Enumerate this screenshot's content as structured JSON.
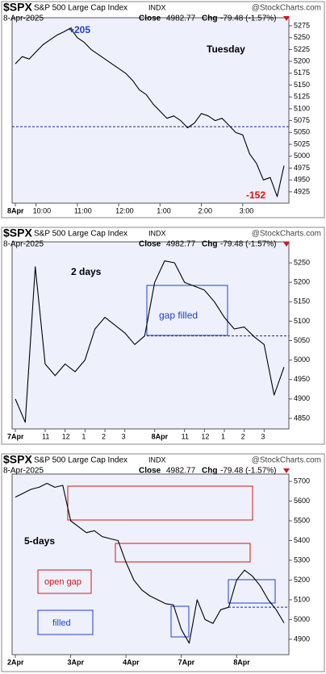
{
  "chart_data": [
    {
      "type": "line",
      "title": "$SPX",
      "subtitle": "S&P 500 Large Cap Index",
      "exchange": "INDX",
      "source": "@StockCharts.com",
      "date": "8-Apr-2025",
      "close_label": "Close",
      "close": 4982.77,
      "change_label": "Chg",
      "change": "-79.48 (-1.57%)",
      "categories": [
        "8Apr",
        null,
        null,
        "10:00",
        null,
        null,
        null,
        null,
        null,
        "11:00",
        null,
        null,
        null,
        null,
        null,
        "12:00",
        null,
        null,
        null,
        null,
        null,
        "1:00",
        null,
        null,
        null,
        null,
        null,
        "2:00",
        null,
        null,
        null,
        null,
        null,
        "3:00",
        null,
        null,
        null,
        null,
        null,
        null
      ],
      "values": [
        5195,
        5210,
        5205,
        5220,
        5235,
        5245,
        5255,
        5262,
        5270,
        5250,
        5240,
        5225,
        5215,
        5205,
        5195,
        5185,
        5175,
        5160,
        5140,
        5130,
        5110,
        5095,
        5080,
        5085,
        5075,
        5060,
        5070,
        5090,
        5085,
        5075,
        5080,
        5065,
        5050,
        5045,
        5005,
        4985,
        4950,
        4955,
        4915,
        4980
      ],
      "color": "#000000",
      "reference_line": 5062.25,
      "ylim": [
        4901,
        5292
      ],
      "yticks": [
        4925,
        4950,
        4975,
        5000,
        5025,
        5050,
        5075,
        5100,
        5125,
        5150,
        5175,
        5200,
        5225,
        5250,
        5275
      ],
      "annotations": [
        {
          "text": "+205",
          "color": "#1f3fd6"
        },
        {
          "text": "-152",
          "color": "#e01010"
        },
        {
          "text": "Tuesday",
          "color": "#000000"
        }
      ]
    },
    {
      "type": "line",
      "title": "$SPX",
      "subtitle": "S&P 500 Large Cap Index",
      "exchange": "INDX",
      "source": "@StockCharts.com",
      "date": "8-Apr-2025",
      "close_label": "Close",
      "close": 4982.77,
      "change_label": "Chg",
      "change": "-79.48 (-1.57%)",
      "categories": [
        "7Apr",
        null,
        null,
        "11",
        null,
        "12",
        null,
        "1",
        null,
        "2",
        null,
        "3",
        null,
        null,
        "8Apr",
        null,
        null,
        "11",
        null,
        "12",
        null,
        "1",
        null,
        "2",
        null,
        "3",
        null,
        null
      ],
      "values": [
        4900,
        4840,
        5240,
        4990,
        4960,
        4990,
        4970,
        5000,
        5080,
        5110,
        5090,
        5070,
        5040,
        5062,
        5200,
        5255,
        5250,
        5200,
        5190,
        5180,
        5150,
        5110,
        5080,
        5085,
        5060,
        5040,
        4910,
        4982
      ],
      "color": "#000000",
      "reference_line": 5062.25,
      "ylim": [
        4823,
        5304
      ],
      "yticks": [
        4850,
        4900,
        4950,
        5000,
        5050,
        5100,
        5150,
        5200,
        5250
      ],
      "annotations": [
        {
          "text": "2 days",
          "color": "#000000"
        },
        {
          "text": "gap filled",
          "color": "#1f3fd6"
        }
      ]
    },
    {
      "type": "line",
      "title": "$SPX",
      "subtitle": "S&P 500 Large Cap Index",
      "exchange": "INDX",
      "source": "@StockCharts.com",
      "date": "8-Apr-2025",
      "close_label": "Close",
      "close": 4982.77,
      "change_label": "Chg",
      "change": "-79.48 (-1.57%)",
      "categories": [
        "2Apr",
        null,
        null,
        null,
        null,
        null,
        null,
        "3Apr",
        null,
        null,
        null,
        null,
        null,
        null,
        "4Apr",
        null,
        null,
        null,
        null,
        null,
        null,
        "7Apr",
        null,
        null,
        null,
        null,
        null,
        null,
        "8Apr",
        null,
        null,
        null,
        null,
        null,
        null
      ],
      "values": [
        5620,
        5640,
        5660,
        5670,
        5690,
        5670,
        5680,
        5500,
        5470,
        5440,
        5450,
        5420,
        5410,
        5400,
        5290,
        5200,
        5150,
        5120,
        5100,
        5080,
        5074,
        4950,
        4880,
        5100,
        5000,
        4980,
        5050,
        5062,
        5200,
        5250,
        5220,
        5170,
        5100,
        5050,
        4982.77
      ],
      "color": "#000000",
      "reference_line": 5062.25,
      "ylim": [
        4822,
        5737
      ],
      "yticks": [
        4900,
        5000,
        5100,
        5200,
        5300,
        5400,
        5500,
        5600,
        5700
      ],
      "annotations": [
        {
          "text": "5-days",
          "color": "#000000"
        },
        {
          "text": "open gap",
          "color": "#e01010"
        },
        {
          "text": "filled",
          "color": "#1f3fd6"
        }
      ]
    }
  ]
}
